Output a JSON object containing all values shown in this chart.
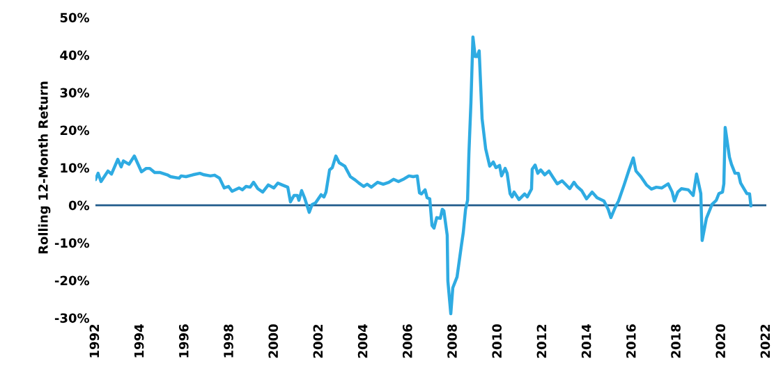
{
  "chart_data": {
    "type": "line",
    "ylabel": "Rolling 12-Month Return",
    "xlim": [
      1992,
      2022
    ],
    "ylim": [
      -30,
      50
    ],
    "xticks": [
      1992,
      1994,
      1996,
      1998,
      2000,
      2002,
      2004,
      2006,
      2008,
      2010,
      2012,
      2014,
      2016,
      2018,
      2020,
      2022
    ],
    "yticks": [
      {
        "value": -30,
        "label": "-30%"
      },
      {
        "value": -20,
        "label": "-20%"
      },
      {
        "value": -10,
        "label": "-10%"
      },
      {
        "value": 0,
        "label": "0%"
      },
      {
        "value": 10,
        "label": "10%"
      },
      {
        "value": 20,
        "label": "20%"
      },
      {
        "value": 30,
        "label": "30%"
      },
      {
        "value": 40,
        "label": "40%"
      },
      {
        "value": 50,
        "label": "50%"
      }
    ],
    "grid": false,
    "ref_lines": [
      {
        "axis": "y",
        "value": 0,
        "color": "#1f5a8a"
      }
    ],
    "series": [
      {
        "color": "#2eabe2",
        "x": [
          1992.0,
          1992.12,
          1992.25,
          1992.56,
          1992.72,
          1993.0,
          1993.15,
          1993.25,
          1993.5,
          1993.74,
          1994.06,
          1994.27,
          1994.43,
          1994.65,
          1994.9,
          1995.21,
          1995.36,
          1995.74,
          1995.83,
          1996.05,
          1996.36,
          1996.67,
          1996.86,
          1997.14,
          1997.33,
          1997.55,
          1997.76,
          1997.95,
          1998.11,
          1998.42,
          1998.57,
          1998.73,
          1998.92,
          1999.07,
          1999.26,
          1999.48,
          1999.73,
          1999.98,
          2000.16,
          2000.35,
          2000.6,
          2000.72,
          2000.88,
          2001.03,
          2001.1,
          2001.22,
          2001.35,
          2001.56,
          2001.69,
          2001.84,
          2002.09,
          2002.22,
          2002.31,
          2002.47,
          2002.59,
          2002.75,
          2002.9,
          2003.15,
          2003.4,
          2003.62,
          2003.78,
          2003.99,
          2004.15,
          2004.34,
          2004.62,
          2004.87,
          2005.12,
          2005.33,
          2005.55,
          2005.8,
          2006.02,
          2006.21,
          2006.39,
          2006.49,
          2006.58,
          2006.74,
          2006.83,
          2006.95,
          2007.05,
          2007.14,
          2007.26,
          2007.42,
          2007.51,
          2007.58,
          2007.73,
          2007.76,
          2007.89,
          2007.98,
          2008.17,
          2008.36,
          2008.45,
          2008.55,
          2008.64,
          2008.7,
          2008.79,
          2008.88,
          2008.98,
          2009.07,
          2009.16,
          2009.29,
          2009.45,
          2009.63,
          2009.79,
          2009.91,
          2010.07,
          2010.16,
          2010.32,
          2010.41,
          2010.54,
          2010.63,
          2010.72,
          2010.94,
          2011.19,
          2011.31,
          2011.5,
          2011.53,
          2011.66,
          2011.78,
          2011.91,
          2012.09,
          2012.28,
          2012.44,
          2012.65,
          2012.87,
          2013.21,
          2013.4,
          2013.53,
          2013.74,
          2013.96,
          2014.21,
          2014.43,
          2014.74,
          2014.93,
          2015.05,
          2015.24,
          2015.39,
          2015.64,
          2015.86,
          2016.05,
          2016.17,
          2016.39,
          2016.64,
          2016.86,
          2017.08,
          2017.33,
          2017.61,
          2017.79,
          2017.89,
          2018.04,
          2018.2,
          2018.51,
          2018.73,
          2018.88,
          2019.07,
          2019.13,
          2019.32,
          2019.57,
          2019.76,
          2019.88,
          2020.04,
          2020.1,
          2020.16,
          2020.35,
          2020.44,
          2020.6,
          2020.75,
          2020.85,
          2021.0,
          2021.13,
          2021.25,
          2021.31
        ],
        "values": [
          6.8,
          8.5,
          6.3,
          9.1,
          8.3,
          12.2,
          10.2,
          11.8,
          10.9,
          13.1,
          8.9,
          9.8,
          9.8,
          8.7,
          8.7,
          8.1,
          7.6,
          7.2,
          7.8,
          7.6,
          8.1,
          8.5,
          8.1,
          7.8,
          8.0,
          7.2,
          4.6,
          5.0,
          3.7,
          4.6,
          4.1,
          5.0,
          4.8,
          6.1,
          4.4,
          3.5,
          5.4,
          4.6,
          5.9,
          5.4,
          4.8,
          0.9,
          2.6,
          2.6,
          1.3,
          3.9,
          2.0,
          -1.9,
          0.2,
          0.6,
          2.8,
          2.2,
          3.5,
          9.4,
          10.0,
          13.1,
          11.3,
          10.4,
          7.6,
          6.7,
          5.9,
          5.0,
          5.6,
          4.8,
          6.1,
          5.6,
          6.1,
          6.9,
          6.3,
          7.0,
          7.8,
          7.6,
          7.8,
          3.3,
          3.0,
          4.1,
          2.0,
          1.7,
          -5.4,
          -6.1,
          -3.3,
          -3.5,
          -1.1,
          -1.5,
          -8.0,
          -20.2,
          -28.9,
          -22.0,
          -19.1,
          -10.9,
          -7.2,
          -1.1,
          1.3,
          13.7,
          27.2,
          44.8,
          39.6,
          39.6,
          41.1,
          23.0,
          15.0,
          10.4,
          11.5,
          10.0,
          10.6,
          7.8,
          9.8,
          8.5,
          3.1,
          2.2,
          3.5,
          1.5,
          3.0,
          2.2,
          4.3,
          9.6,
          10.7,
          8.5,
          9.4,
          8.1,
          9.1,
          7.6,
          5.7,
          6.5,
          4.4,
          6.1,
          5.0,
          3.9,
          1.7,
          3.5,
          2.0,
          1.1,
          -1.1,
          -3.3,
          -0.6,
          1.1,
          5.4,
          9.4,
          12.6,
          9.1,
          7.6,
          5.4,
          4.3,
          4.8,
          4.6,
          5.7,
          3.5,
          1.1,
          3.5,
          4.4,
          4.1,
          2.6,
          8.3,
          3.1,
          -9.4,
          -3.5,
          0.2,
          1.3,
          3.1,
          3.5,
          5.7,
          20.7,
          12.8,
          10.9,
          8.5,
          8.5,
          5.9,
          4.4,
          3.1,
          3.0,
          -0.2
        ]
      }
    ]
  }
}
